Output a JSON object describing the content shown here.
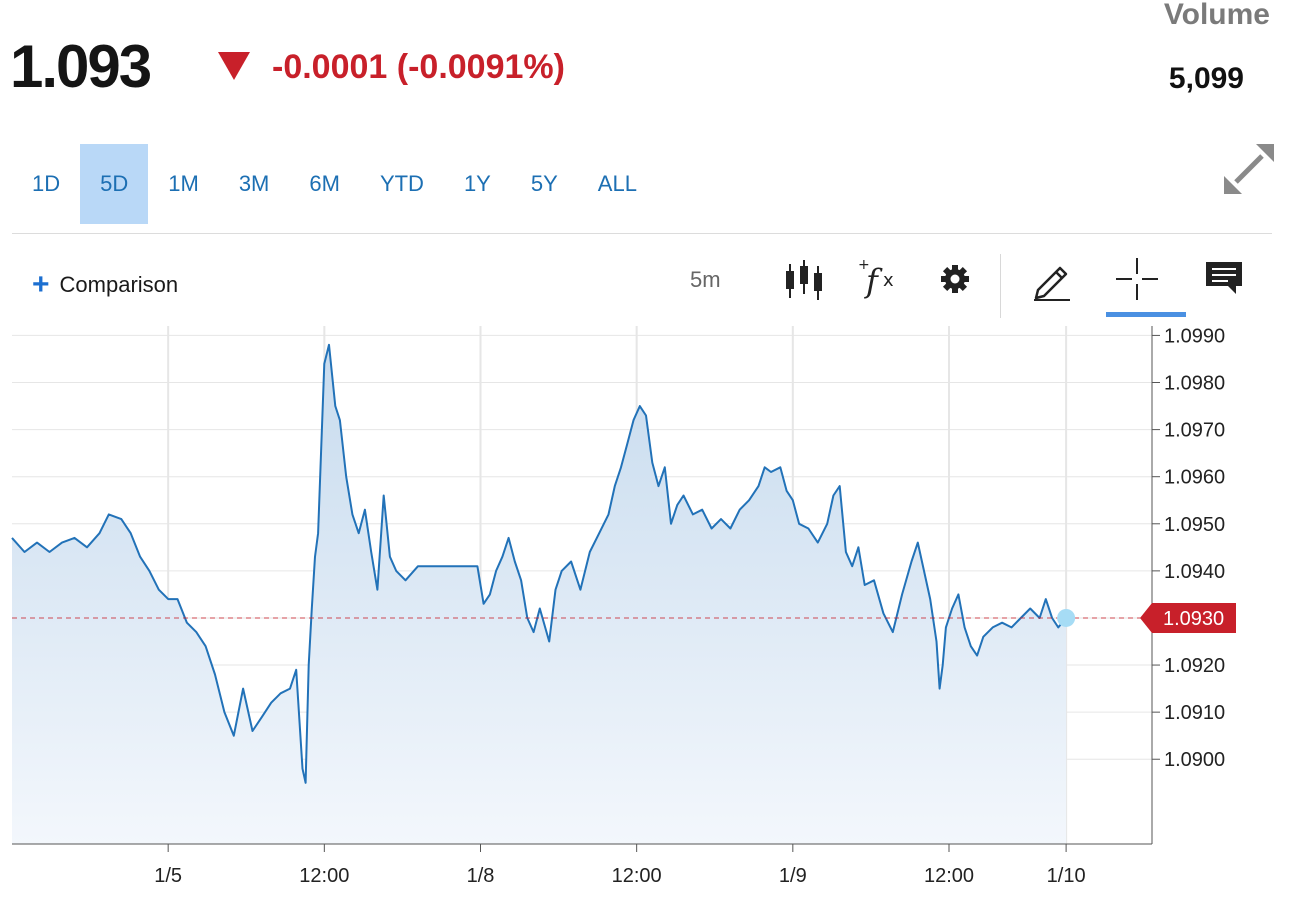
{
  "quote": {
    "price": "1.093",
    "change": "-0.0001 (-0.0091%)",
    "direction": "down",
    "volume_label": "Volume",
    "volume_value": "5,099"
  },
  "ranges": [
    {
      "label": "1D",
      "active": false
    },
    {
      "label": "5D",
      "active": true
    },
    {
      "label": "1M",
      "active": false
    },
    {
      "label": "3M",
      "active": false
    },
    {
      "label": "6M",
      "active": false
    },
    {
      "label": "YTD",
      "active": false
    },
    {
      "label": "1Y",
      "active": false
    },
    {
      "label": "5Y",
      "active": false
    },
    {
      "label": "ALL",
      "active": false
    }
  ],
  "toolbar": {
    "comparison_label": "Comparison",
    "interval_label": "5m",
    "icons": [
      "expand-icon",
      "candlestick-icon",
      "function-icon",
      "gear-icon",
      "pencil-icon",
      "crosshair-icon",
      "comment-icon"
    ]
  },
  "colors": {
    "line": "#2272b8",
    "fill_top": "#c7dbee",
    "fill_bottom": "#f3f7fc",
    "down": "#c8202a",
    "current_dot": "#a6dcf5",
    "active_range": "#b9d8f7",
    "link": "#1c6fb3"
  },
  "chart_data": {
    "type": "area",
    "title": "",
    "xlabel": "",
    "ylabel": "",
    "ylim": [
      1.0882,
      1.0992
    ],
    "y_ticks": [
      "1.0990",
      "1.0980",
      "1.0970",
      "1.0960",
      "1.0950",
      "1.0940",
      "1.0930",
      "1.0920",
      "1.0910",
      "1.0900"
    ],
    "x_ticks": [
      {
        "label": "1/5",
        "t": 1.0
      },
      {
        "label": "12:00",
        "t": 2.0
      },
      {
        "label": "1/8",
        "t": 3.0
      },
      {
        "label": "12:00",
        "t": 4.0
      },
      {
        "label": "1/9",
        "t": 5.0
      },
      {
        "label": "12:00",
        "t": 6.0
      },
      {
        "label": "1/10",
        "t": 6.75
      }
    ],
    "x_range": [
      0.0,
      7.3
    ],
    "current_value": "1.0930",
    "series": [
      {
        "points": [
          [
            0.0,
            1.0947
          ],
          [
            0.08,
            1.0944
          ],
          [
            0.16,
            1.0946
          ],
          [
            0.24,
            1.0944
          ],
          [
            0.32,
            1.0946
          ],
          [
            0.4,
            1.0947
          ],
          [
            0.48,
            1.0945
          ],
          [
            0.56,
            1.0948
          ],
          [
            0.62,
            1.0952
          ],
          [
            0.7,
            1.0951
          ],
          [
            0.76,
            1.0948
          ],
          [
            0.82,
            1.0943
          ],
          [
            0.88,
            1.094
          ],
          [
            0.94,
            1.0936
          ],
          [
            1.0,
            1.0934
          ],
          [
            1.06,
            1.0934
          ],
          [
            1.12,
            1.0929
          ],
          [
            1.18,
            1.0927
          ],
          [
            1.24,
            1.0924
          ],
          [
            1.3,
            1.0918
          ],
          [
            1.36,
            1.091
          ],
          [
            1.42,
            1.0905
          ],
          [
            1.48,
            1.0915
          ],
          [
            1.54,
            1.0906
          ],
          [
            1.6,
            1.0909
          ],
          [
            1.66,
            1.0912
          ],
          [
            1.72,
            1.0914
          ],
          [
            1.78,
            1.0915
          ],
          [
            1.82,
            1.0919
          ],
          [
            1.86,
            1.0898
          ],
          [
            1.88,
            1.0895
          ],
          [
            1.9,
            1.092
          ],
          [
            1.92,
            1.0932
          ],
          [
            1.94,
            1.0943
          ],
          [
            1.96,
            1.0948
          ],
          [
            2.0,
            1.0984
          ],
          [
            2.03,
            1.0988
          ],
          [
            2.07,
            1.0975
          ],
          [
            2.1,
            1.0972
          ],
          [
            2.14,
            1.096
          ],
          [
            2.18,
            1.0952
          ],
          [
            2.22,
            1.0948
          ],
          [
            2.26,
            1.0953
          ],
          [
            2.3,
            1.0944
          ],
          [
            2.34,
            1.0936
          ],
          [
            2.38,
            1.0956
          ],
          [
            2.42,
            1.0943
          ],
          [
            2.46,
            1.094
          ],
          [
            2.52,
            1.0938
          ],
          [
            2.6,
            1.0941
          ],
          [
            2.68,
            1.0941
          ],
          [
            2.76,
            1.0941
          ],
          [
            2.84,
            1.0941
          ],
          [
            2.92,
            1.0941
          ],
          [
            2.98,
            1.0941
          ],
          [
            3.02,
            1.0933
          ],
          [
            3.06,
            1.0935
          ],
          [
            3.1,
            1.094
          ],
          [
            3.14,
            1.0943
          ],
          [
            3.18,
            1.0947
          ],
          [
            3.22,
            1.0942
          ],
          [
            3.26,
            1.0938
          ],
          [
            3.3,
            1.093
          ],
          [
            3.34,
            1.0927
          ],
          [
            3.38,
            1.0932
          ],
          [
            3.44,
            1.0925
          ],
          [
            3.48,
            1.0936
          ],
          [
            3.52,
            1.094
          ],
          [
            3.58,
            1.0942
          ],
          [
            3.64,
            1.0936
          ],
          [
            3.7,
            1.0944
          ],
          [
            3.76,
            1.0948
          ],
          [
            3.82,
            1.0952
          ],
          [
            3.86,
            1.0958
          ],
          [
            3.9,
            1.0962
          ],
          [
            3.94,
            1.0967
          ],
          [
            3.98,
            1.0972
          ],
          [
            4.02,
            1.0975
          ],
          [
            4.06,
            1.0973
          ],
          [
            4.1,
            1.0963
          ],
          [
            4.14,
            1.0958
          ],
          [
            4.18,
            1.0962
          ],
          [
            4.22,
            1.095
          ],
          [
            4.26,
            1.0954
          ],
          [
            4.3,
            1.0956
          ],
          [
            4.36,
            1.0952
          ],
          [
            4.42,
            1.0953
          ],
          [
            4.48,
            1.0949
          ],
          [
            4.54,
            1.0951
          ],
          [
            4.6,
            1.0949
          ],
          [
            4.66,
            1.0953
          ],
          [
            4.72,
            1.0955
          ],
          [
            4.78,
            1.0958
          ],
          [
            4.82,
            1.0962
          ],
          [
            4.86,
            1.0961
          ],
          [
            4.92,
            1.0962
          ],
          [
            4.96,
            1.0957
          ],
          [
            5.0,
            1.0955
          ],
          [
            5.04,
            1.095
          ],
          [
            5.1,
            1.0949
          ],
          [
            5.16,
            1.0946
          ],
          [
            5.22,
            1.095
          ],
          [
            5.26,
            1.0956
          ],
          [
            5.3,
            1.0958
          ],
          [
            5.34,
            1.0944
          ],
          [
            5.38,
            1.0941
          ],
          [
            5.42,
            1.0945
          ],
          [
            5.46,
            1.0937
          ],
          [
            5.52,
            1.0938
          ],
          [
            5.58,
            1.0931
          ],
          [
            5.64,
            1.0927
          ],
          [
            5.7,
            1.0935
          ],
          [
            5.76,
            1.0942
          ],
          [
            5.8,
            1.0946
          ],
          [
            5.84,
            1.094
          ],
          [
            5.88,
            1.0934
          ],
          [
            5.92,
            1.0925
          ],
          [
            5.94,
            1.0915
          ],
          [
            5.96,
            1.092
          ],
          [
            5.98,
            1.0928
          ],
          [
            6.02,
            1.0932
          ],
          [
            6.06,
            1.0935
          ],
          [
            6.1,
            1.0928
          ],
          [
            6.14,
            1.0924
          ],
          [
            6.18,
            1.0922
          ],
          [
            6.22,
            1.0926
          ],
          [
            6.28,
            1.0928
          ],
          [
            6.34,
            1.0929
          ],
          [
            6.4,
            1.0928
          ],
          [
            6.46,
            1.093
          ],
          [
            6.52,
            1.0932
          ],
          [
            6.58,
            1.093
          ],
          [
            6.62,
            1.0934
          ],
          [
            6.66,
            1.093
          ],
          [
            6.7,
            1.0928
          ],
          [
            6.75,
            1.093
          ]
        ]
      }
    ]
  }
}
